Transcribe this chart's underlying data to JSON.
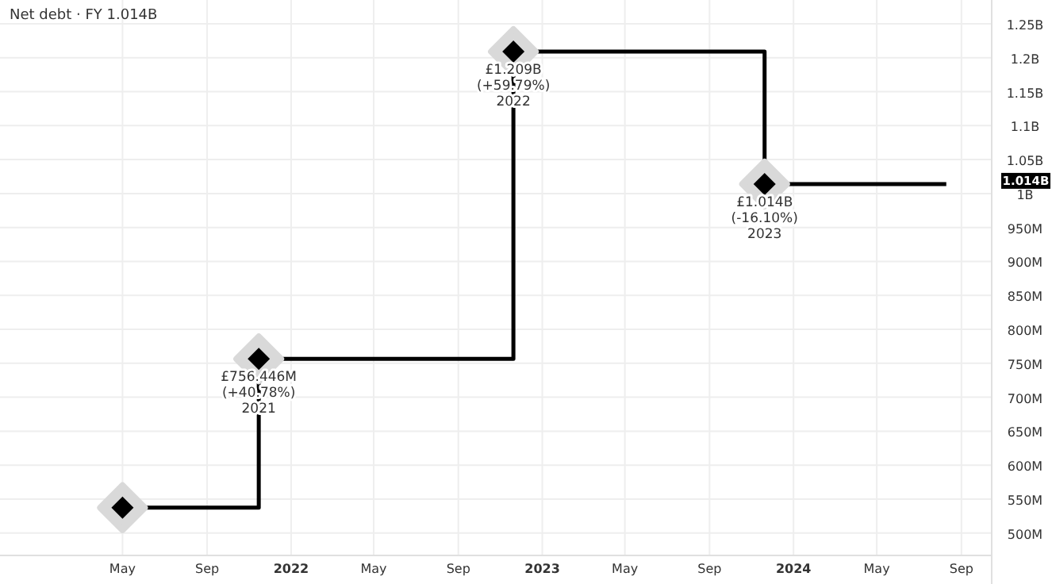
{
  "chart_data": {
    "type": "step",
    "title": "Net debt · FY  1.014B",
    "x": [
      "2021-05-01",
      "2021-11-15",
      "2022-11-20",
      "2023-11-20",
      "2024-08-10"
    ],
    "series": [
      {
        "color": "#000000",
        "values": [
          537300000,
          756446000,
          1209000000,
          1014000000,
          1014000000
        ]
      }
    ],
    "value_labels": [
      null,
      "£756.446M\n(+40.78%)\n2021",
      "£1.209B\n(+59.79%)\n2022",
      "£1.014B\n(-16.10%)\n2023",
      null
    ],
    "marker": "diamond",
    "line_style": "solid",
    "grid": true,
    "xlim": [
      "2020-11-04",
      "2024-10-15"
    ],
    "xticks": [
      {
        "value": "2021-05-01",
        "label": "May"
      },
      {
        "value": "2021-09-01",
        "label": "Sep"
      },
      {
        "value": "2022-01-01",
        "label": "2022"
      },
      {
        "value": "2022-05-01",
        "label": "May"
      },
      {
        "value": "2022-09-01",
        "label": "Sep"
      },
      {
        "value": "2023-01-01",
        "label": "2023"
      },
      {
        "value": "2023-05-01",
        "label": "May"
      },
      {
        "value": "2023-09-01",
        "label": "Sep"
      },
      {
        "value": "2024-01-01",
        "label": "2024"
      },
      {
        "value": "2024-05-01",
        "label": "May"
      },
      {
        "value": "2024-09-01",
        "label": "Sep"
      }
    ],
    "ylim": [
      467000000,
      1285000000
    ],
    "yticks": [
      {
        "value": 500000000,
        "label": "500M"
      },
      {
        "value": 550000000,
        "label": "550M"
      },
      {
        "value": 600000000,
        "label": "600M"
      },
      {
        "value": 650000000,
        "label": "650M"
      },
      {
        "value": 700000000,
        "label": "700M"
      },
      {
        "value": 750000000,
        "label": "750M"
      },
      {
        "value": 800000000,
        "label": "800M"
      },
      {
        "value": 850000000,
        "label": "850M"
      },
      {
        "value": 900000000,
        "label": "900M"
      },
      {
        "value": 950000000,
        "label": "950M"
      },
      {
        "value": 1000000000,
        "label": "1B"
      },
      {
        "value": 1050000000,
        "label": "1.05B"
      },
      {
        "value": 1100000000,
        "label": "1.1B"
      },
      {
        "value": 1150000000,
        "label": "1.15B"
      },
      {
        "value": 1200000000,
        "label": "1.2B"
      },
      {
        "value": 1250000000,
        "label": "1.25B"
      }
    ],
    "annotations": [
      "1.014B"
    ]
  }
}
